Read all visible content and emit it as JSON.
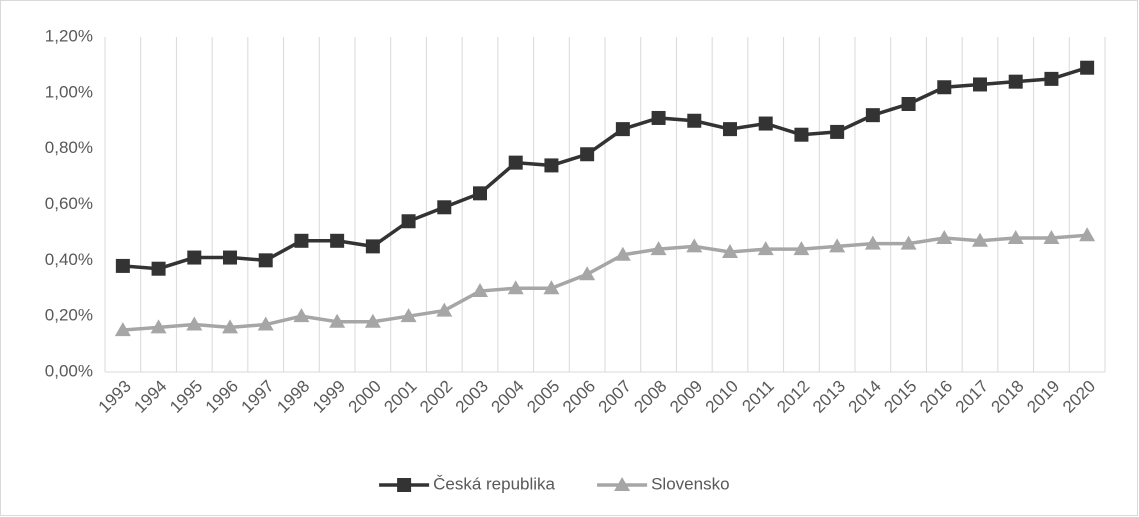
{
  "chart_data": {
    "type": "line",
    "categories": [
      "1993",
      "1994",
      "1995",
      "1996",
      "1997",
      "1998",
      "1999",
      "2000",
      "2001",
      "2002",
      "2003",
      "2004",
      "2005",
      "2006",
      "2007",
      "2008",
      "2009",
      "2010",
      "2011",
      "2012",
      "2013",
      "2014",
      "2015",
      "2016",
      "2017",
      "2018",
      "2019",
      "2020"
    ],
    "series": [
      {
        "name": "Česká republika",
        "color": "#333333",
        "marker": "square",
        "values": [
          0.38,
          0.37,
          0.41,
          0.41,
          0.4,
          0.47,
          0.47,
          0.45,
          0.54,
          0.59,
          0.64,
          0.75,
          0.74,
          0.78,
          0.87,
          0.91,
          0.9,
          0.87,
          0.89,
          0.85,
          0.86,
          0.92,
          0.96,
          1.02,
          1.03,
          1.04,
          1.05,
          1.09
        ]
      },
      {
        "name": "Slovensko",
        "color": "#a6a6a6",
        "marker": "triangle",
        "values": [
          0.15,
          0.16,
          0.17,
          0.16,
          0.17,
          0.2,
          0.18,
          0.18,
          0.2,
          0.22,
          0.29,
          0.3,
          0.3,
          0.35,
          0.42,
          0.44,
          0.45,
          0.43,
          0.44,
          0.44,
          0.45,
          0.46,
          0.46,
          0.48,
          0.47,
          0.48,
          0.48,
          0.49
        ]
      }
    ],
    "ylim": [
      0,
      1.2
    ],
    "yticks": [
      {
        "value": 0,
        "label": "0,00%"
      },
      {
        "value": 0.2,
        "label": "0,20%"
      },
      {
        "value": 0.4,
        "label": "0,40%"
      },
      {
        "value": 0.6,
        "label": "0,60%"
      },
      {
        "value": 0.8,
        "label": "0,80%"
      },
      {
        "value": 1.0,
        "label": "1,00%"
      },
      {
        "value": 1.2,
        "label": "1,20%"
      }
    ],
    "grid": "vertical",
    "legend": "bottom"
  }
}
